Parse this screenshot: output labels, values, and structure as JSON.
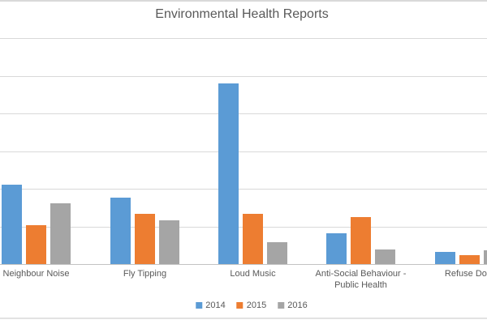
{
  "chart": {
    "title": "Environmental Health Reports"
  },
  "legend": {
    "items": [
      {
        "label": "2014",
        "color": "#5B9BD5"
      },
      {
        "label": "2015",
        "color": "#ED7D31"
      },
      {
        "label": "2016",
        "color": "#A5A5A5"
      }
    ]
  },
  "chart_data": {
    "type": "bar",
    "title": "Environmental Health Reports",
    "categories": [
      "Neighbour Noise",
      "Fly Tipping",
      "Loud Music",
      "Anti-Social Behaviour - Public Health",
      "Refuse Dom"
    ],
    "series": [
      {
        "name": "2014",
        "color": "#5B9BD5",
        "values": [
          105,
          88,
          240,
          41,
          16
        ]
      },
      {
        "name": "2015",
        "color": "#ED7D31",
        "values": [
          52,
          67,
          67,
          62,
          12
        ]
      },
      {
        "name": "2016",
        "color": "#A5A5A5",
        "values": [
          81,
          58,
          29,
          19,
          18
        ]
      }
    ],
    "ylim": [
      0,
      300
    ],
    "gridline_step": 50,
    "grid": true,
    "legend_position": "bottom",
    "y_axis_labels_visible": false
  }
}
